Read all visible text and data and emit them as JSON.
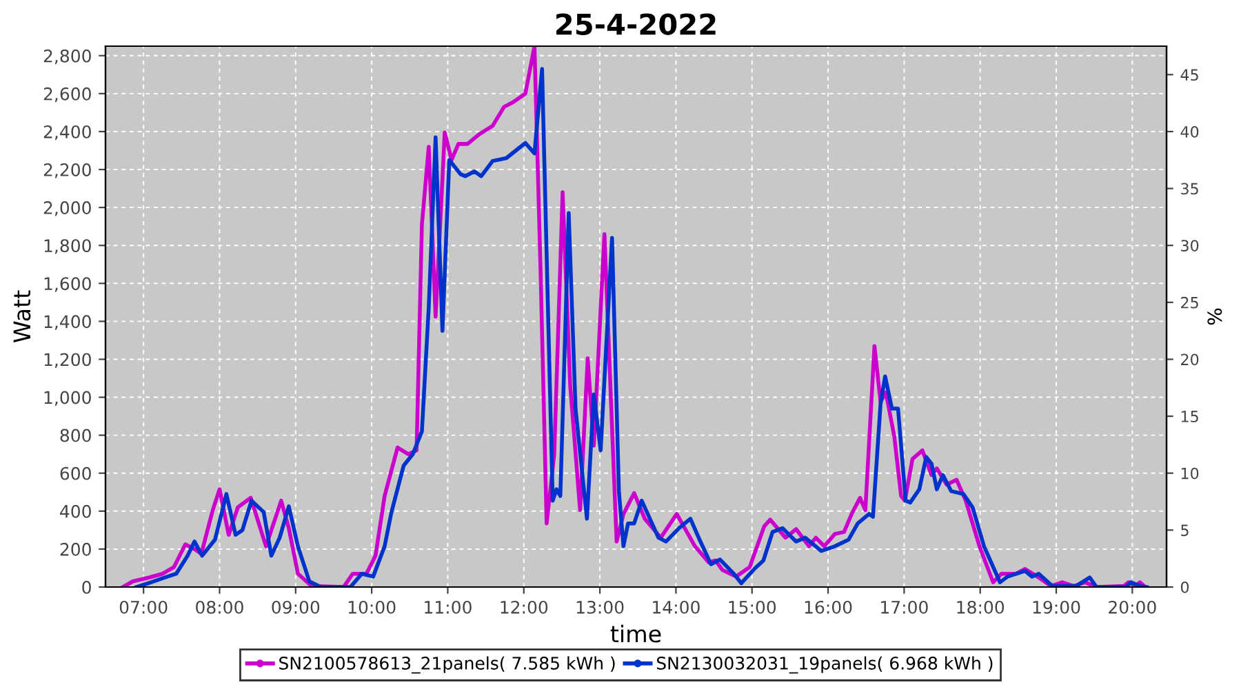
{
  "chart_data": {
    "type": "line",
    "title": "25-4-2022",
    "xlabel": "time",
    "ylabel": "Watt",
    "y2label": "%",
    "xlim": [
      6.5,
      20.45
    ],
    "xticks": [
      {
        "value": 7,
        "label": "07:00"
      },
      {
        "value": 8,
        "label": "08:00"
      },
      {
        "value": 9,
        "label": "09:00"
      },
      {
        "value": 10,
        "label": "10:00"
      },
      {
        "value": 11,
        "label": "11:00"
      },
      {
        "value": 12,
        "label": "12:00"
      },
      {
        "value": 13,
        "label": "13:00"
      },
      {
        "value": 14,
        "label": "14:00"
      },
      {
        "value": 15,
        "label": "15:00"
      },
      {
        "value": 16,
        "label": "16:00"
      },
      {
        "value": 17,
        "label": "17:00"
      },
      {
        "value": 18,
        "label": "18:00"
      },
      {
        "value": 19,
        "label": "19:00"
      },
      {
        "value": 20,
        "label": "20:00"
      }
    ],
    "ylim": [
      0,
      2850
    ],
    "yticks": [
      0,
      200,
      400,
      600,
      800,
      {
        "value": 1000,
        "label": "1,000"
      },
      {
        "value": 1200,
        "label": "1,200"
      },
      {
        "value": 1400,
        "label": "1,400"
      },
      {
        "value": 1600,
        "label": "1,600"
      },
      {
        "value": 1800,
        "label": "1,800"
      },
      {
        "value": 2000,
        "label": "2,000"
      },
      {
        "value": 2200,
        "label": "2,200"
      },
      {
        "value": 2400,
        "label": "2,400"
      },
      {
        "value": 2600,
        "label": "2,600"
      },
      {
        "value": 2800,
        "label": "2,800"
      }
    ],
    "y2lim": [
      0,
      47.5
    ],
    "y2ticks": [
      0,
      5,
      10,
      15,
      20,
      25,
      30,
      35,
      40,
      45
    ],
    "grid": true,
    "legend": "bottom",
    "line_style": "solid",
    "series": [
      {
        "name": "SN2100578613_21panels( 7.585 kWh )",
        "color": "#cc00cc",
        "x": [
          6.73,
          6.86,
          7.07,
          7.25,
          7.4,
          7.55,
          7.67,
          7.76,
          7.91,
          8.0,
          8.12,
          8.24,
          8.41,
          8.61,
          8.81,
          8.91,
          9.03,
          9.21,
          9.63,
          9.75,
          9.93,
          10.05,
          10.17,
          10.34,
          10.48,
          10.59,
          10.66,
          10.75,
          10.84,
          10.96,
          11.05,
          11.14,
          11.26,
          11.41,
          11.59,
          11.74,
          11.86,
          12.02,
          12.14,
          12.22,
          12.3,
          12.4,
          12.51,
          12.61,
          12.74,
          12.84,
          12.92,
          13.06,
          13.15,
          13.22,
          13.31,
          13.45,
          13.59,
          13.8,
          14.01,
          14.25,
          14.43,
          14.52,
          14.61,
          14.79,
          14.97,
          15.16,
          15.24,
          15.44,
          15.58,
          15.75,
          15.84,
          15.95,
          16.09,
          16.21,
          16.31,
          16.42,
          16.49,
          16.61,
          16.69,
          16.76,
          16.87,
          16.96,
          17.01,
          17.11,
          17.24,
          17.36,
          17.43,
          17.56,
          17.69,
          17.81,
          17.99,
          18.17,
          18.28,
          18.47,
          18.59,
          18.77,
          18.93,
          19.08,
          19.23,
          19.38,
          19.53,
          19.89,
          19.95,
          20.04,
          20.1,
          20.17
        ],
        "values": [
          0,
          30,
          50,
          70,
          105,
          225,
          200,
          175,
          405,
          515,
          275,
          420,
          470,
          215,
          455,
          310,
          70,
          5,
          0,
          70,
          70,
          165,
          480,
          735,
          700,
          720,
          1910,
          2320,
          1425,
          2395,
          2250,
          2335,
          2335,
          2385,
          2430,
          2530,
          2555,
          2600,
          2850,
          1670,
          335,
          700,
          2080,
          1060,
          405,
          1205,
          745,
          1860,
          940,
          240,
          385,
          495,
          360,
          260,
          385,
          215,
          130,
          140,
          90,
          55,
          105,
          320,
          355,
          260,
          305,
          215,
          260,
          215,
          280,
          290,
          385,
          470,
          405,
          1270,
          975,
          1025,
          795,
          480,
          455,
          675,
          720,
          590,
          625,
          540,
          565,
          455,
          215,
          25,
          70,
          70,
          95,
          50,
          5,
          25,
          5,
          25,
          0,
          5,
          25,
          5,
          25,
          0
        ]
      },
      {
        "name": "SN2130032031_19panels( 6.968 kWh )",
        "color": "#0033cc",
        "x": [
          6.91,
          7.1,
          7.28,
          7.43,
          7.58,
          7.67,
          7.77,
          7.94,
          8.09,
          8.21,
          8.3,
          8.42,
          8.58,
          8.68,
          8.79,
          8.91,
          9.03,
          9.18,
          9.33,
          9.72,
          9.87,
          10.02,
          10.17,
          10.26,
          10.42,
          10.54,
          10.66,
          10.75,
          10.84,
          10.93,
          11.02,
          11.17,
          11.23,
          11.35,
          11.44,
          11.59,
          11.77,
          12.02,
          12.14,
          12.24,
          12.32,
          12.38,
          12.43,
          12.48,
          12.59,
          12.68,
          12.83,
          12.92,
          13.01,
          13.16,
          13.25,
          13.31,
          13.37,
          13.45,
          13.55,
          13.77,
          13.87,
          14.04,
          14.19,
          14.31,
          14.46,
          14.58,
          14.76,
          14.86,
          15.03,
          15.15,
          15.27,
          15.4,
          15.58,
          15.7,
          15.91,
          16.09,
          16.27,
          16.39,
          16.54,
          16.59,
          16.69,
          16.75,
          16.84,
          16.92,
          17.02,
          17.08,
          17.2,
          17.29,
          17.36,
          17.43,
          17.51,
          17.62,
          17.78,
          17.9,
          18.05,
          18.26,
          18.36,
          18.59,
          18.68,
          18.77,
          18.95,
          19.26,
          19.44,
          19.53,
          19.92,
          19.98,
          20.1,
          20.19
        ],
        "values": [
          0,
          25,
          50,
          70,
          165,
          240,
          165,
          250,
          490,
          275,
          300,
          455,
          395,
          165,
          260,
          425,
          215,
          30,
          0,
          0,
          70,
          55,
          215,
          395,
          640,
          700,
          820,
          1475,
          2370,
          1350,
          2250,
          2175,
          2165,
          2190,
          2165,
          2245,
          2260,
          2340,
          2285,
          2730,
          1425,
          455,
          515,
          480,
          1970,
          940,
          360,
          1015,
          720,
          1840,
          505,
          215,
          335,
          335,
          455,
          260,
          240,
          310,
          360,
          250,
          120,
          145,
          70,
          20,
          95,
          140,
          290,
          310,
          240,
          260,
          190,
          215,
          250,
          335,
          385,
          370,
          965,
          1110,
          940,
          940,
          455,
          445,
          515,
          685,
          650,
          515,
          590,
          505,
          490,
          420,
          215,
          25,
          55,
          85,
          55,
          70,
          5,
          5,
          50,
          0,
          0,
          25,
          5,
          0
        ]
      }
    ]
  }
}
